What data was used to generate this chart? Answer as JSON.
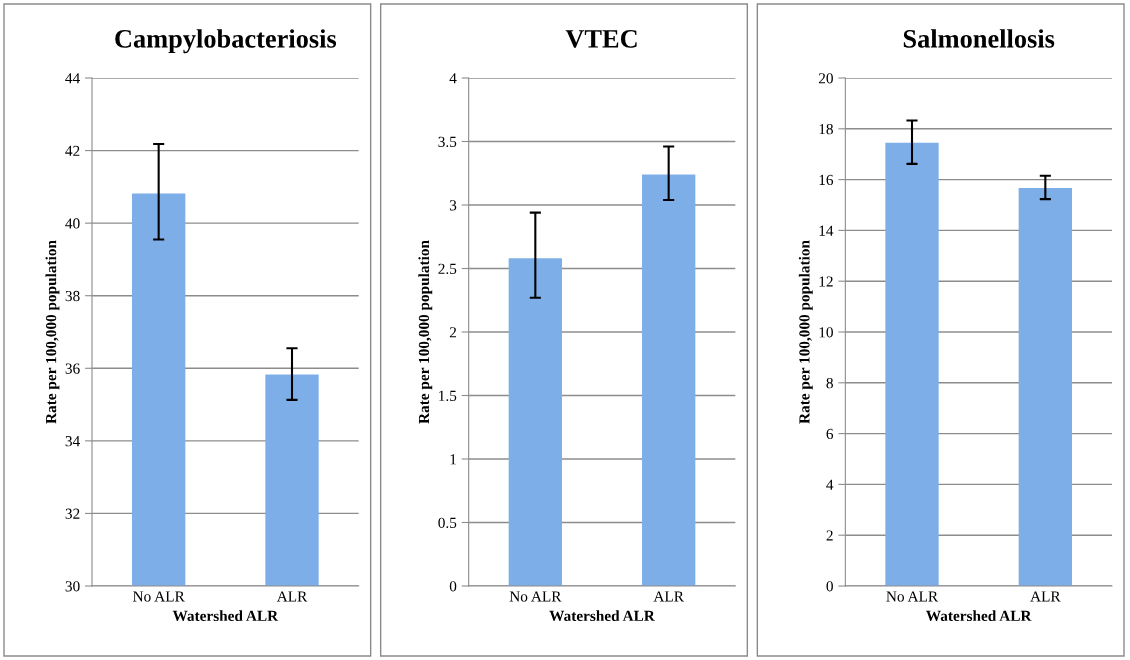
{
  "chart_data": [
    {
      "type": "bar",
      "title": "Campylobacteriosis",
      "xlabel": "Watershed ALR",
      "ylabel": "Rate per 100,000 population",
      "categories": [
        "No ALR",
        "ALR"
      ],
      "values": [
        40.82,
        35.83
      ],
      "errors": [
        [
          39.55,
          42.18
        ],
        [
          35.13,
          36.55
        ]
      ],
      "color": "#7eaee8",
      "ylim": [
        30,
        44
      ],
      "yticks": [
        30,
        32,
        34,
        36,
        38,
        40,
        42,
        44
      ],
      "grid": "y",
      "legend": false
    },
    {
      "type": "bar",
      "title": "VTEC",
      "xlabel": "Watershed ALR",
      "ylabel": "Rate per 100,000 population",
      "categories": [
        "No ALR",
        "ALR"
      ],
      "values": [
        2.58,
        3.24
      ],
      "errors": [
        [
          2.27,
          2.94
        ],
        [
          3.04,
          3.46
        ]
      ],
      "color": "#7eaee8",
      "ylim": [
        0,
        4
      ],
      "yticks": [
        0,
        0.5,
        1,
        1.5,
        2,
        2.5,
        3,
        3.5,
        4
      ],
      "grid": "y",
      "legend": false
    },
    {
      "type": "bar",
      "title": "Salmonellosis",
      "xlabel": "Watershed ALR",
      "ylabel": "Rate per 100,000 population",
      "categories": [
        "No ALR",
        "ALR"
      ],
      "values": [
        17.45,
        15.67
      ],
      "errors": [
        [
          16.62,
          18.33
        ],
        [
          15.23,
          16.15
        ]
      ],
      "color": "#7eaee8",
      "ylim": [
        0,
        20
      ],
      "yticks": [
        0,
        2,
        4,
        6,
        8,
        10,
        12,
        14,
        16,
        18,
        20
      ],
      "grid": "y",
      "legend": false
    }
  ]
}
